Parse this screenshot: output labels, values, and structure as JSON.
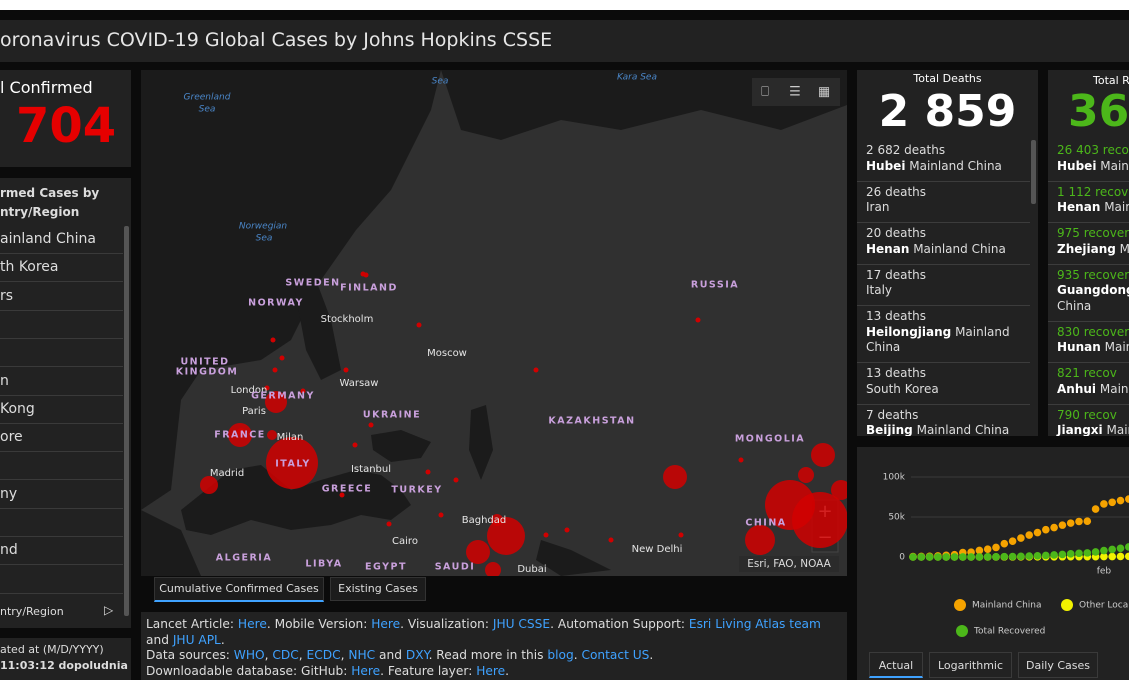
{
  "header": {
    "title": "oronavirus COVID-19 Global Cases by Johns Hopkins CSSE"
  },
  "confirmed": {
    "label": "l Confirmed",
    "total": "704",
    "list_title": [
      "rmed Cases by",
      "ntry/Region"
    ],
    "rows": [
      "ainland China",
      "th Korea",
      "rs",
      "n",
      "Kong",
      "ore",
      "ny",
      "nd"
    ],
    "footer": "ntry/Region"
  },
  "updated": {
    "label": "ated at (M/D/YYYY)",
    "time": "11:03:12 dopoludnia"
  },
  "map": {
    "labels": [
      "Sea",
      "Kara Sea",
      "Greenland",
      "Sea",
      "Norwegian",
      "Sea",
      "SWEDEN",
      "FINLAND",
      "NORWAY",
      "Stockholm",
      "RUSSIA",
      "UNITED",
      "KINGDOM",
      "Moscow",
      "London",
      "Warsaw",
      "GERMANY",
      "Paris",
      "UKRAINE",
      "KAZAKHSTAN",
      "FRANCE",
      "Milan",
      "MONGOLIA",
      "ITALY",
      "Istanbul",
      "Madrid",
      "GREECE",
      "TURKEY",
      "Baghdad",
      "CHINA",
      "New Delhi",
      "ALGERIA",
      "LIBYA",
      "EGYPT",
      "Cairo",
      "SAUDI",
      "Dubai"
    ],
    "attribution": "Esri, FAO, NOAA",
    "tabs": [
      "Cumulative Confirmed Cases",
      "Existing Cases"
    ]
  },
  "info": {
    "lines": [
      [
        {
          "text": "Lancet Article: "
        },
        {
          "text": "Here",
          "link": true
        },
        {
          "text": ". Mobile Version: "
        },
        {
          "text": "Here",
          "link": true
        },
        {
          "text": ". Visualization: "
        },
        {
          "text": "JHU CSSE",
          "link": true
        },
        {
          "text": ". Automation Support: "
        },
        {
          "text": "Esri Living Atlas team",
          "link": true
        },
        {
          "text": " and "
        },
        {
          "text": "JHU APL",
          "link": true
        },
        {
          "text": "."
        }
      ],
      [
        {
          "text": "Data sources: "
        },
        {
          "text": "WHO",
          "link": true
        },
        {
          "text": ", "
        },
        {
          "text": "CDC",
          "link": true
        },
        {
          "text": ", "
        },
        {
          "text": "ECDC",
          "link": true
        },
        {
          "text": ", "
        },
        {
          "text": "NHC",
          "link": true
        },
        {
          "text": " and "
        },
        {
          "text": "DXY",
          "link": true
        },
        {
          "text": ". Read more in this "
        },
        {
          "text": "blog",
          "link": true
        },
        {
          "text": ". "
        },
        {
          "text": "Contact US",
          "link": true
        },
        {
          "text": "."
        }
      ],
      [
        {
          "text": "Downloadable database: GitHub: "
        },
        {
          "text": "Here",
          "link": true
        },
        {
          "text": ". Feature layer: "
        },
        {
          "text": "Here",
          "link": true
        },
        {
          "text": "."
        }
      ]
    ]
  },
  "deaths": {
    "title": "Total Deaths",
    "total": "2 859",
    "rows": [
      {
        "count": "2 682 deaths",
        "region": "Hubei",
        "country": "Mainland China"
      },
      {
        "count": "26 deaths",
        "country": "Iran"
      },
      {
        "count": "20 deaths",
        "region": "Henan",
        "country": "Mainland China"
      },
      {
        "count": "17 deaths",
        "country": "Italy"
      },
      {
        "count": "13 deaths",
        "region": "Heilongjiang",
        "country": "Mainland China"
      },
      {
        "count": "13 deaths",
        "country": "South Korea"
      },
      {
        "count": "7 deaths",
        "region": "Beijing",
        "country": "Mainland China"
      }
    ]
  },
  "recovered": {
    "title": "Total R",
    "total": "36",
    "rows": [
      {
        "count": "26 403 reco",
        "region": "Hubei",
        "country": "Mainl"
      },
      {
        "count": "1 112 recov",
        "region": "Henan",
        "country": "Main"
      },
      {
        "count": "975 recover",
        "region": "Zhejiang",
        "country": "Ma"
      },
      {
        "count": "935 recover",
        "region": "Guangdong",
        "country": "China"
      },
      {
        "count": "830 recover",
        "region": "Hunan",
        "country": "Main"
      },
      {
        "count": "821 recov",
        "region": "Anhui",
        "country": "Mainl"
      },
      {
        "count": "790 recov",
        "region": "Jiangxi",
        "country": "Main"
      }
    ]
  },
  "chart_data": {
    "type": "scatter-line",
    "categories": [
      null,
      null,
      null,
      null,
      null,
      null,
      null,
      null,
      null,
      null,
      null,
      null,
      null,
      null,
      null,
      null,
      null,
      null,
      null,
      null,
      null,
      null,
      null,
      "feb",
      null,
      null,
      null
    ],
    "ylim": [
      0,
      110000
    ],
    "yticks": [
      0,
      {
        "value": 50000,
        "label": "50k"
      },
      {
        "value": 100000,
        "label": "100k"
      }
    ],
    "grid": true,
    "series": [
      {
        "name": "Mainland China",
        "color": "#f5a300",
        "values": [
          548,
          643,
          920,
          1406,
          2075,
          2877,
          5509,
          6087,
          8141,
          9802,
          11891,
          16630,
          19716,
          23707,
          27440,
          30587,
          34110,
          36814,
          39829,
          42354,
          44386,
          44759,
          59895,
          66358,
          68413,
          70513,
          72434
        ]
      },
      {
        "name": "Other Loca",
        "color": "#f2f200",
        "values": [
          7,
          10,
          12,
          20,
          28,
          44,
          56,
          68,
          82,
          106,
          132,
          146,
          153,
          159,
          191,
          216,
          270,
          288,
          307,
          319,
          395,
          441,
          447,
          505,
          526,
          683,
          794
        ]
      },
      {
        "name": "Total Recovered",
        "color": "#4cb71a",
        "values": [
          28,
          30,
          36,
          39,
          52,
          61,
          107,
          126,
          143,
          222,
          284,
          472,
          623,
          852,
          1124,
          1487,
          2011,
          2616,
          3244,
          3946,
          4683,
          5150,
          6295,
          8058,
          9395,
          10865,
          12561
        ]
      }
    ]
  },
  "chart_tabs": [
    "Actual",
    "Logarithmic",
    "Daily Cases"
  ]
}
